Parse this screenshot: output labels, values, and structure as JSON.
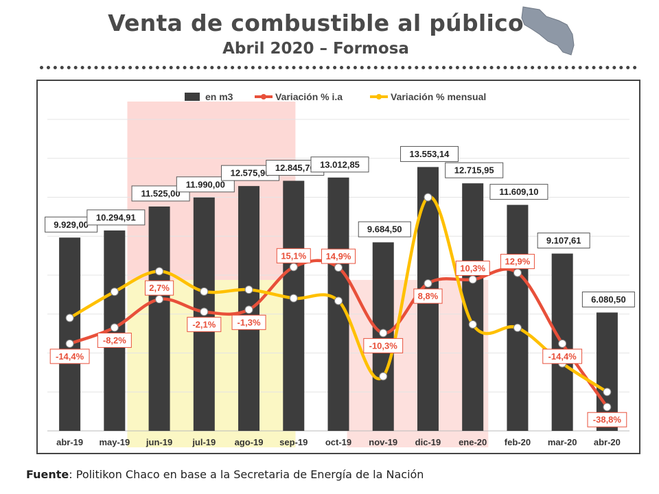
{
  "header": {
    "title": "Venta de combustible al público",
    "subtitle": "Abril 2020 – Formosa"
  },
  "footer": {
    "source_label": "Fuente",
    "source_text": ": Politikon Chaco en base a la Secretaria de Energía de la Nación"
  },
  "chart_data": {
    "type": "bar",
    "categories": [
      "abr-19",
      "may-19",
      "jun-19",
      "jul-19",
      "ago-19",
      "sep-19",
      "oct-19",
      "nov-19",
      "dic-19",
      "ene-20",
      "feb-20",
      "mar-20",
      "abr-20"
    ],
    "series": [
      {
        "name": "en m3",
        "type": "bar",
        "color": "#3d3d3d",
        "values": [
          9929.0,
          10294.91,
          11525.0,
          11990.0,
          12575.9,
          12845.7,
          13012.85,
          9684.5,
          13553.14,
          12715.95,
          11609.1,
          9107.61,
          6080.5
        ],
        "labels": [
          "9.929,00",
          "10.294,91",
          "11.525,00",
          "11.990,00",
          "12.575,90",
          "12.845,70",
          "13.012,85",
          "9.684,50",
          "13.553,14",
          "12.715,95",
          "11.609,10",
          "9.107,61",
          "6.080,50"
        ]
      },
      {
        "name": "Variación % i.a",
        "type": "line",
        "color": "#e8503a",
        "values": [
          -14.4,
          -8.2,
          2.7,
          -2.1,
          -1.3,
          15.1,
          14.9,
          -10.3,
          8.8,
          10.3,
          12.9,
          -14.4,
          -38.8
        ],
        "labels": [
          "-14,4%",
          "-8,2%",
          "2,7%",
          "-2,1%",
          "-1,3%",
          "15,1%",
          "14,9%",
          "-10,3%",
          "8,8%",
          "10,3%",
          "12,9%",
          "-14,4%",
          "-38,8%"
        ]
      },
      {
        "name": "Variación % mensual",
        "type": "line",
        "color": "#ffc000",
        "values": [
          -4.5,
          5.6,
          13.5,
          5.7,
          6.4,
          3.1,
          2.1,
          -27.0,
          42.0,
          -7.0,
          -8.3,
          -22.0,
          -33.0
        ]
      }
    ],
    "ylim_bars": [
      0,
      16000
    ],
    "ylim_pct": [
      -48,
      72
    ],
    "grid": true,
    "legend": "top"
  }
}
